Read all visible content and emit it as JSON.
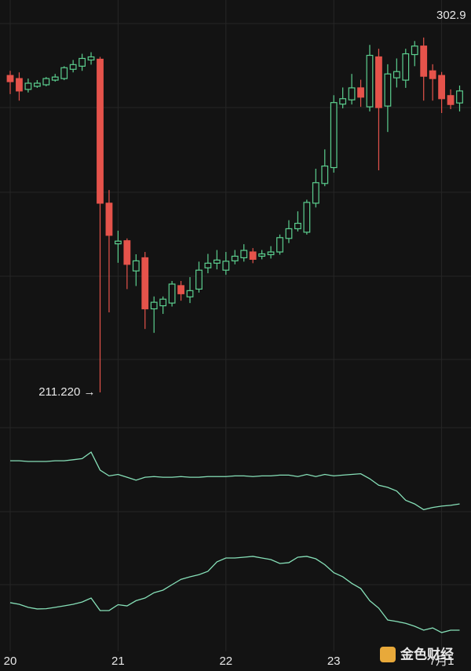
{
  "chart_data": {
    "type": "candlestick",
    "categories": [
      "20",
      null,
      null,
      null,
      null,
      null,
      null,
      null,
      null,
      null,
      null,
      null,
      "21",
      null,
      null,
      null,
      null,
      null,
      null,
      null,
      null,
      null,
      null,
      null,
      "22",
      null,
      null,
      null,
      null,
      null,
      null,
      null,
      null,
      null,
      null,
      null,
      "23",
      null,
      null,
      null,
      null,
      null,
      null,
      null,
      null,
      null,
      null,
      null,
      "7月1",
      null,
      null
    ],
    "open": [
      293.1,
      292.3,
      289.5,
      290.3,
      290.7,
      291.9,
      292.3,
      294.7,
      295.5,
      297.1,
      297.3,
      260.1,
      249.6,
      250.4,
      242.6,
      246.0,
      232.8,
      233.6,
      234.3,
      238.8,
      235.9,
      237.9,
      243.4,
      244.6,
      242.8,
      245.2,
      246.0,
      247.5,
      246.4,
      246.8,
      247.5,
      251.0,
      253.5,
      252.6,
      260.1,
      265.2,
      269.3,
      285.7,
      286.8,
      289.9,
      285.0,
      297.9,
      285.2,
      292.5,
      291.9,
      298.5,
      300.7,
      294.3,
      293.1,
      287.9,
      286.0
    ],
    "high": [
      294.3,
      293.9,
      292.3,
      291.9,
      292.7,
      293.5,
      295.5,
      297.1,
      298.7,
      299.1,
      297.9,
      263.5,
      253.0,
      251.0,
      246.9,
      247.5,
      236.0,
      236.0,
      240.0,
      240.0,
      241.0,
      245.0,
      247.0,
      248.0,
      247.5,
      248.0,
      249.5,
      248.5,
      248.0,
      249.0,
      252.0,
      255.7,
      258.0,
      261.0,
      269.0,
      274.0,
      288.0,
      290.0,
      293.5,
      292.0,
      301.0,
      300.0,
      296.0,
      297.5,
      300.0,
      302.0,
      302.9,
      296.0,
      294.0,
      289.5,
      290.5
    ],
    "low": [
      288.3,
      286.6,
      288.7,
      289.9,
      290.3,
      291.5,
      291.9,
      293.9,
      294.3,
      295.9,
      211.2,
      231.9,
      244.7,
      237.9,
      238.7,
      227.6,
      226.6,
      231.5,
      233.4,
      234.9,
      234.3,
      237.0,
      242.0,
      243.0,
      241.6,
      244.3,
      245.0,
      244.6,
      245.6,
      245.8,
      246.8,
      249.8,
      252.8,
      252.0,
      259.0,
      264.5,
      268.0,
      284.6,
      285.6,
      285.0,
      283.8,
      268.6,
      278.5,
      290.0,
      289.9,
      295.5,
      286.6,
      286.6,
      283.4,
      284.4,
      283.8
    ],
    "close": [
      291.5,
      289.1,
      291.1,
      291.1,
      292.3,
      292.7,
      295.1,
      295.9,
      297.5,
      297.9,
      260.1,
      251.8,
      250.3,
      244.3,
      245.2,
      232.8,
      234.5,
      235.3,
      239.2,
      236.7,
      237.5,
      242.8,
      244.6,
      245.4,
      245.1,
      246.4,
      247.9,
      245.6,
      247.0,
      247.5,
      251.2,
      253.5,
      254.9,
      260.3,
      265.4,
      269.7,
      286.1,
      287.1,
      289.9,
      287.5,
      298.3,
      284.8,
      293.5,
      294.1,
      298.7,
      300.7,
      292.9,
      292.3,
      287.1,
      285.6,
      289.1
    ],
    "up_color": "#5ccf8f",
    "down_color": "#e5534b",
    "ylim": [
      203.1,
      312.6
    ],
    "max_label": "302.9",
    "min_label": "211.220 →",
    "indicators": [
      {
        "color": "#86e0b8",
        "ylim": [
          0,
          100
        ],
        "values": [
          70.8,
          70.8,
          70,
          70,
          70,
          70.8,
          70.8,
          72,
          73.3,
          80.8,
          60,
          53.3,
          55,
          51.7,
          48.3,
          51.7,
          52.5,
          51.7,
          51.7,
          52.5,
          51.7,
          51.7,
          52.5,
          52.5,
          52.5,
          53.3,
          53.3,
          52.5,
          53.3,
          53.3,
          54.2,
          54.2,
          52.5,
          55,
          52.5,
          55,
          53.3,
          54.2,
          55,
          55.8,
          50,
          42.5,
          40,
          35.8,
          25,
          20.8,
          14.2,
          16.7,
          18.3,
          19.2,
          20.8
        ]
      },
      {
        "color": "#86e0b8",
        "ylim": [
          0,
          100
        ],
        "values": [
          36.5,
          35.3,
          33,
          31.8,
          32,
          33,
          34.1,
          35.3,
          37,
          40,
          30.6,
          30.6,
          35,
          34.1,
          38,
          40,
          44,
          45.9,
          50,
          54,
          55.9,
          57.5,
          60,
          67.1,
          70,
          70,
          70.6,
          71.2,
          70,
          68.8,
          65.9,
          66.5,
          70.6,
          71.2,
          69.4,
          65,
          59,
          55.9,
          51,
          47.1,
          38,
          32.4,
          23.5,
          22.4,
          21,
          18.8,
          15.9,
          17.6,
          14.1,
          15.9,
          15.9
        ]
      }
    ],
    "watermark": "金色财经"
  }
}
